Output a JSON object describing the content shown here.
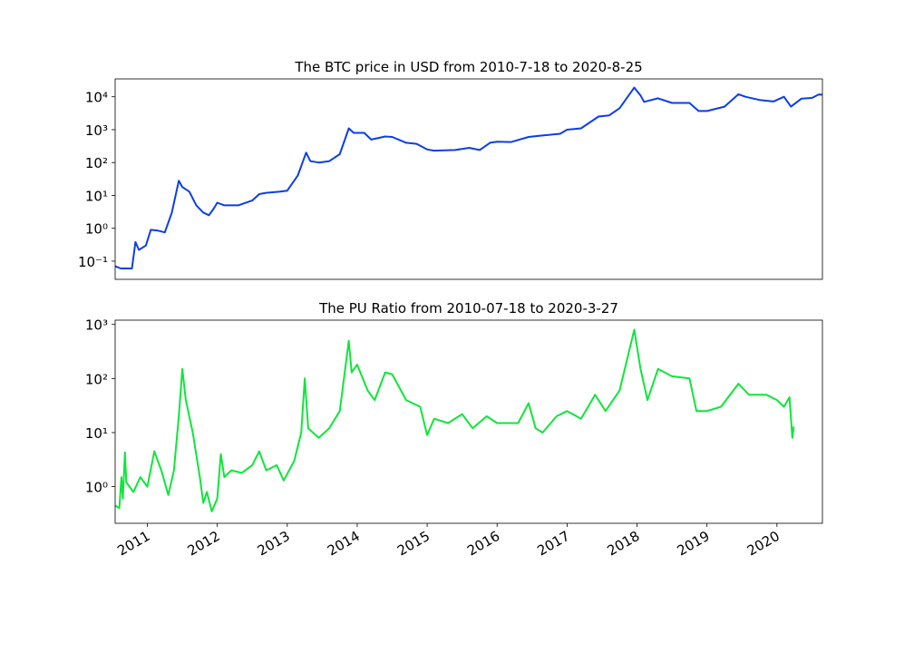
{
  "chart_data": [
    {
      "type": "line",
      "title": "The BTC price in USD from 2010-7-18 to 2020-8-25",
      "yscale": "log",
      "color": "#0b3ee8",
      "xlim": [
        2010.54,
        2020.65
      ],
      "ylim": [
        0.028,
        35000
      ],
      "yticks": [
        {
          "value": 0.1,
          "label": "10⁻¹"
        },
        {
          "value": 1,
          "label": "10⁰"
        },
        {
          "value": 10,
          "label": "10¹"
        },
        {
          "value": 100,
          "label": "10²"
        },
        {
          "value": 1000,
          "label": "10³"
        },
        {
          "value": 10000,
          "label": "10⁴"
        }
      ],
      "x": [
        2010.54,
        2010.62,
        2010.78,
        2010.83,
        2010.88,
        2010.98,
        2011.05,
        2011.15,
        2011.25,
        2011.35,
        2011.45,
        2011.5,
        2011.6,
        2011.7,
        2011.8,
        2011.88,
        2011.95,
        2012.0,
        2012.1,
        2012.3,
        2012.5,
        2012.6,
        2012.7,
        2012.9,
        2013.0,
        2013.15,
        2013.27,
        2013.33,
        2013.45,
        2013.6,
        2013.75,
        2013.88,
        2013.95,
        2014.1,
        2014.2,
        2014.4,
        2014.5,
        2014.7,
        2014.85,
        2015.0,
        2015.1,
        2015.4,
        2015.6,
        2015.75,
        2015.9,
        2016.0,
        2016.2,
        2016.45,
        2016.6,
        2016.9,
        2017.0,
        2017.2,
        2017.45,
        2017.6,
        2017.75,
        2017.96,
        2018.05,
        2018.1,
        2018.3,
        2018.5,
        2018.75,
        2018.88,
        2019.0,
        2019.25,
        2019.45,
        2019.55,
        2019.75,
        2019.95,
        2020.1,
        2020.2,
        2020.35,
        2020.5,
        2020.6,
        2020.65
      ],
      "values": [
        0.07,
        0.06,
        0.06,
        0.38,
        0.22,
        0.3,
        0.9,
        0.85,
        0.75,
        3,
        28,
        18,
        13,
        5,
        3,
        2.5,
        4,
        6,
        5,
        5,
        7,
        11,
        12,
        13,
        14,
        40,
        200,
        110,
        100,
        110,
        180,
        1100,
        800,
        800,
        500,
        620,
        600,
        400,
        370,
        250,
        230,
        240,
        280,
        240,
        400,
        430,
        420,
        600,
        650,
        750,
        1000,
        1100,
        2500,
        2700,
        4500,
        19000,
        11000,
        7000,
        9000,
        6500,
        6500,
        3700,
        3700,
        5000,
        12000,
        10000,
        8000,
        7200,
        10000,
        5000,
        8800,
        9200,
        11800,
        11500
      ]
    },
    {
      "type": "line",
      "title": "The PU Ratio from 2010-07-18 to 2020-3-27",
      "yscale": "log",
      "color": "#0fe63a",
      "xlim": [
        2010.54,
        2020.65
      ],
      "ylim": [
        0.21,
        1200
      ],
      "xticks": [
        2011,
        2012,
        2013,
        2014,
        2015,
        2016,
        2017,
        2018,
        2019,
        2020
      ],
      "yticks": [
        {
          "value": 1,
          "label": "10⁰"
        },
        {
          "value": 10,
          "label": "10¹"
        },
        {
          "value": 100,
          "label": "10²"
        },
        {
          "value": 1000,
          "label": "10³"
        }
      ],
      "x": [
        2010.54,
        2010.6,
        2010.63,
        2010.65,
        2010.68,
        2010.7,
        2010.8,
        2010.9,
        2011.0,
        2011.1,
        2011.2,
        2011.3,
        2011.38,
        2011.45,
        2011.5,
        2011.55,
        2011.65,
        2011.75,
        2011.8,
        2011.85,
        2011.92,
        2012.0,
        2012.05,
        2012.1,
        2012.2,
        2012.35,
        2012.5,
        2012.6,
        2012.7,
        2012.85,
        2012.95,
        2013.1,
        2013.2,
        2013.25,
        2013.3,
        2013.45,
        2013.6,
        2013.75,
        2013.88,
        2013.92,
        2014.0,
        2014.15,
        2014.25,
        2014.4,
        2014.5,
        2014.7,
        2014.9,
        2015.0,
        2015.1,
        2015.3,
        2015.5,
        2015.65,
        2015.85,
        2016.0,
        2016.3,
        2016.45,
        2016.55,
        2016.65,
        2016.85,
        2017.0,
        2017.2,
        2017.4,
        2017.55,
        2017.75,
        2017.96,
        2018.05,
        2018.15,
        2018.3,
        2018.5,
        2018.75,
        2018.85,
        2019.0,
        2019.2,
        2019.45,
        2019.6,
        2019.85,
        2020.0,
        2020.1,
        2020.18,
        2020.22,
        2020.24
      ],
      "values": [
        0.45,
        0.4,
        1.5,
        0.6,
        4.3,
        1.2,
        0.8,
        1.5,
        1,
        4.5,
        2,
        0.7,
        2,
        20,
        150,
        40,
        10,
        1.5,
        0.5,
        0.8,
        0.35,
        0.6,
        4,
        1.5,
        2,
        1.8,
        2.5,
        4.5,
        2,
        2.5,
        1.3,
        3,
        10,
        100,
        12,
        8,
        12,
        25,
        500,
        130,
        180,
        60,
        40,
        130,
        120,
        40,
        30,
        9,
        18,
        15,
        22,
        12,
        20,
        15,
        15,
        35,
        12,
        10,
        20,
        25,
        18,
        50,
        25,
        60,
        800,
        150,
        40,
        150,
        110,
        100,
        25,
        25,
        30,
        80,
        50,
        50,
        40,
        30,
        45,
        8,
        13
      ]
    }
  ]
}
